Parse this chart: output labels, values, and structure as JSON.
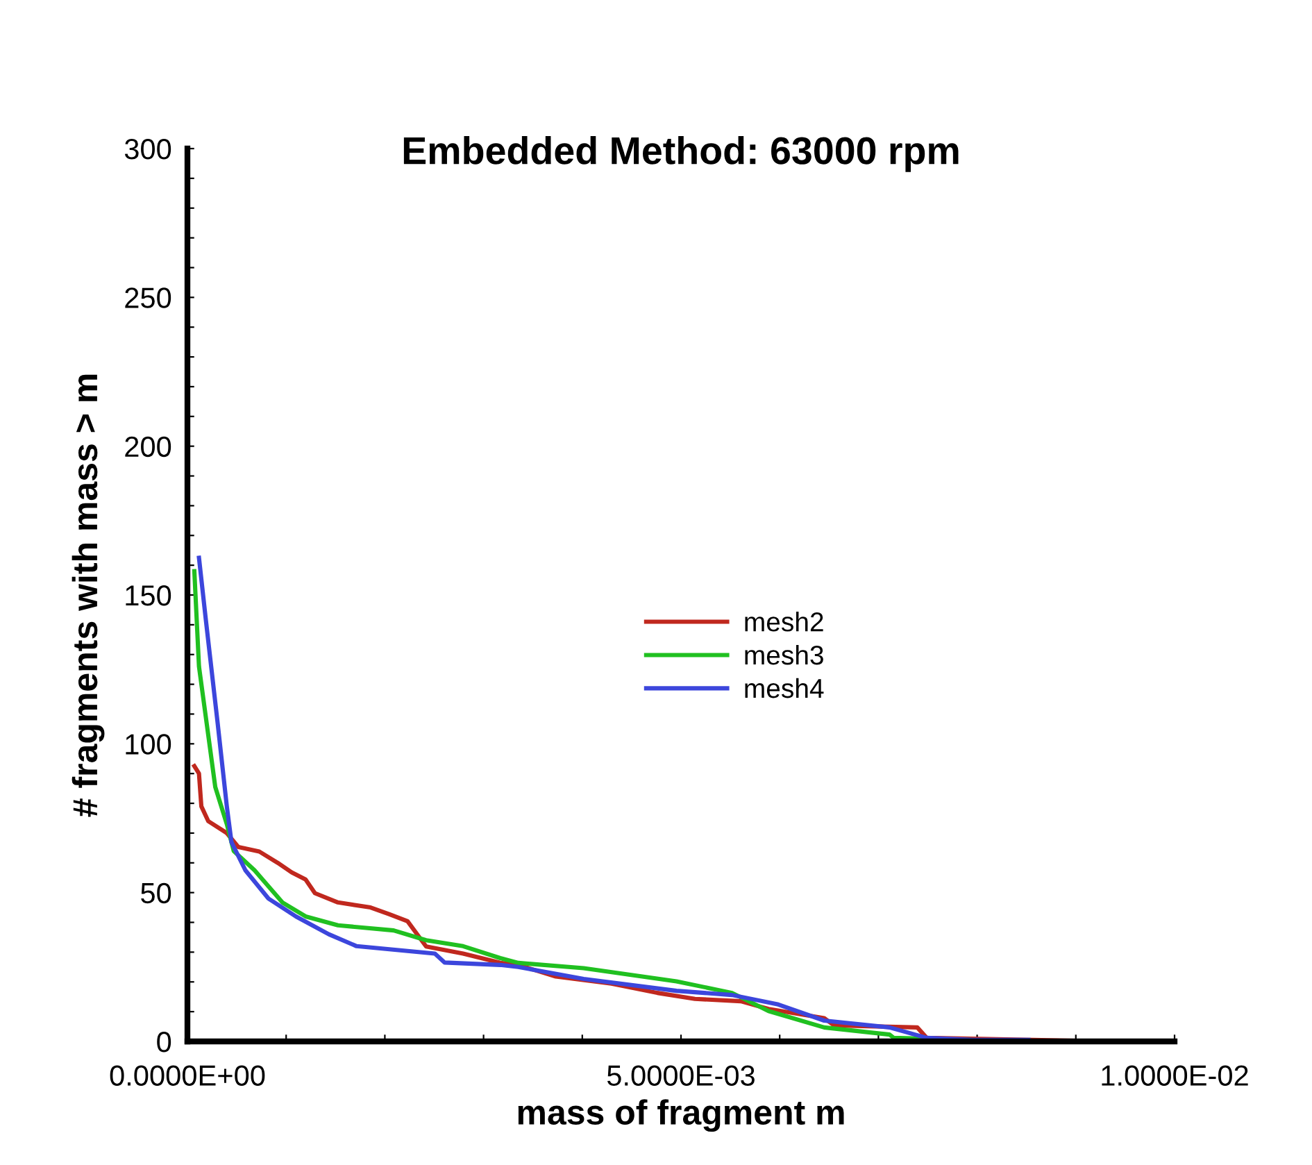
{
  "chart_data": {
    "type": "line",
    "title": "Embedded Method: 63000 rpm",
    "xlabel": "mass of fragment m",
    "ylabel": "# fragments with mass > m",
    "xlim": [
      0,
      0.01
    ],
    "ylim": [
      0,
      300
    ],
    "xticks": [
      {
        "value": 0,
        "label": "0.0000E+00"
      },
      {
        "value": 0.001,
        "label": null
      },
      {
        "value": 0.002,
        "label": null
      },
      {
        "value": 0.003,
        "label": null
      },
      {
        "value": 0.004,
        "label": null
      },
      {
        "value": 0.005,
        "label": "5.0000E-03"
      },
      {
        "value": 0.006,
        "label": null
      },
      {
        "value": 0.007,
        "label": null
      },
      {
        "value": 0.008,
        "label": null
      },
      {
        "value": 0.009,
        "label": null
      },
      {
        "value": 0.01,
        "label": "1.0000E-02"
      }
    ],
    "yticks": [
      0,
      {
        "value": 10,
        "label": null
      },
      {
        "value": 20,
        "label": null
      },
      {
        "value": 30,
        "label": null
      },
      {
        "value": 40,
        "label": null
      },
      50,
      {
        "value": 60,
        "label": null
      },
      {
        "value": 70,
        "label": null
      },
      {
        "value": 80,
        "label": null
      },
      {
        "value": 90,
        "label": null
      },
      100,
      {
        "value": 110,
        "label": null
      },
      {
        "value": 120,
        "label": null
      },
      {
        "value": 130,
        "label": null
      },
      {
        "value": 140,
        "label": null
      },
      150,
      {
        "value": 160,
        "label": null
      },
      {
        "value": 170,
        "label": null
      },
      {
        "value": 180,
        "label": null
      },
      {
        "value": 190,
        "label": null
      },
      200,
      {
        "value": 210,
        "label": null
      },
      {
        "value": 220,
        "label": null
      },
      {
        "value": 230,
        "label": null
      },
      {
        "value": 240,
        "label": null
      },
      250,
      {
        "value": 260,
        "label": null
      },
      {
        "value": 270,
        "label": null
      },
      {
        "value": 280,
        "label": null
      },
      {
        "value": 290,
        "label": null
      },
      300
    ],
    "grid": false,
    "legend": "center",
    "marker": "none",
    "line_style": "solid",
    "series": [
      {
        "name": "mesh2",
        "color": "#c0281e",
        "x": [
          7e-05,
          0.000117,
          0.000141,
          0.000211,
          0.000399,
          0.000517,
          0.000728,
          0.000915,
          0.001056,
          0.001197,
          0.001292,
          0.001525,
          0.001855,
          0.002042,
          0.00223,
          0.002418,
          0.002793,
          0.003169,
          0.003352,
          0.003732,
          0.004296,
          0.004761,
          0.005141,
          0.005606,
          0.005887,
          0.006451,
          0.00655,
          0.007394,
          0.007489,
          0.009366
        ],
        "values": [
          92.5,
          90,
          79,
          74,
          70,
          65.3,
          63.8,
          60,
          56.8,
          54.4,
          49.8,
          46.7,
          45,
          42.8,
          40.4,
          31.9,
          29.5,
          26.4,
          25.7,
          21.8,
          19.4,
          16.3,
          14.3,
          13.5,
          10.9,
          7.8,
          5.4,
          4.7,
          1.2,
          0
        ]
      },
      {
        "name": "mesh3",
        "color": "#20c020",
        "x": [
          7e-05,
          0.000117,
          0.000282,
          0.000399,
          0.000469,
          0.00068,
          0.000962,
          0.001197,
          0.001525,
          0.002089,
          0.002418,
          0.002793,
          0.003169,
          0.003352,
          0.004014,
          0.004954,
          0.005517,
          0.005887,
          0.006451,
          0.007113,
          0.007155,
          0.007958
        ],
        "values": [
          158,
          126,
          85.5,
          73,
          64,
          57.5,
          46.7,
          42,
          39,
          37.3,
          34,
          32,
          28,
          26.4,
          24.6,
          20.2,
          16.3,
          10.2,
          4.7,
          2.3,
          1.2,
          0.5
        ]
      },
      {
        "name": "mesh4",
        "color": "#3c46dc",
        "x": [
          0.000117,
          0.000187,
          0.000306,
          0.000399,
          0.000446,
          0.000587,
          0.000821,
          0.001099,
          0.001432,
          0.001714,
          0.002507,
          0.002606,
          0.003169,
          0.003352,
          0.004014,
          0.004954,
          0.005517,
          0.005986,
          0.006451,
          0.007113,
          0.007489,
          0.007958,
          0.008521
        ],
        "values": [
          162.5,
          141.5,
          107,
          79,
          67,
          57.5,
          48,
          42,
          36,
          32,
          29.5,
          26.5,
          25.7,
          25,
          21,
          17,
          15.6,
          12.4,
          7,
          4.7,
          1.2,
          0.5,
          0.5
        ]
      }
    ]
  }
}
